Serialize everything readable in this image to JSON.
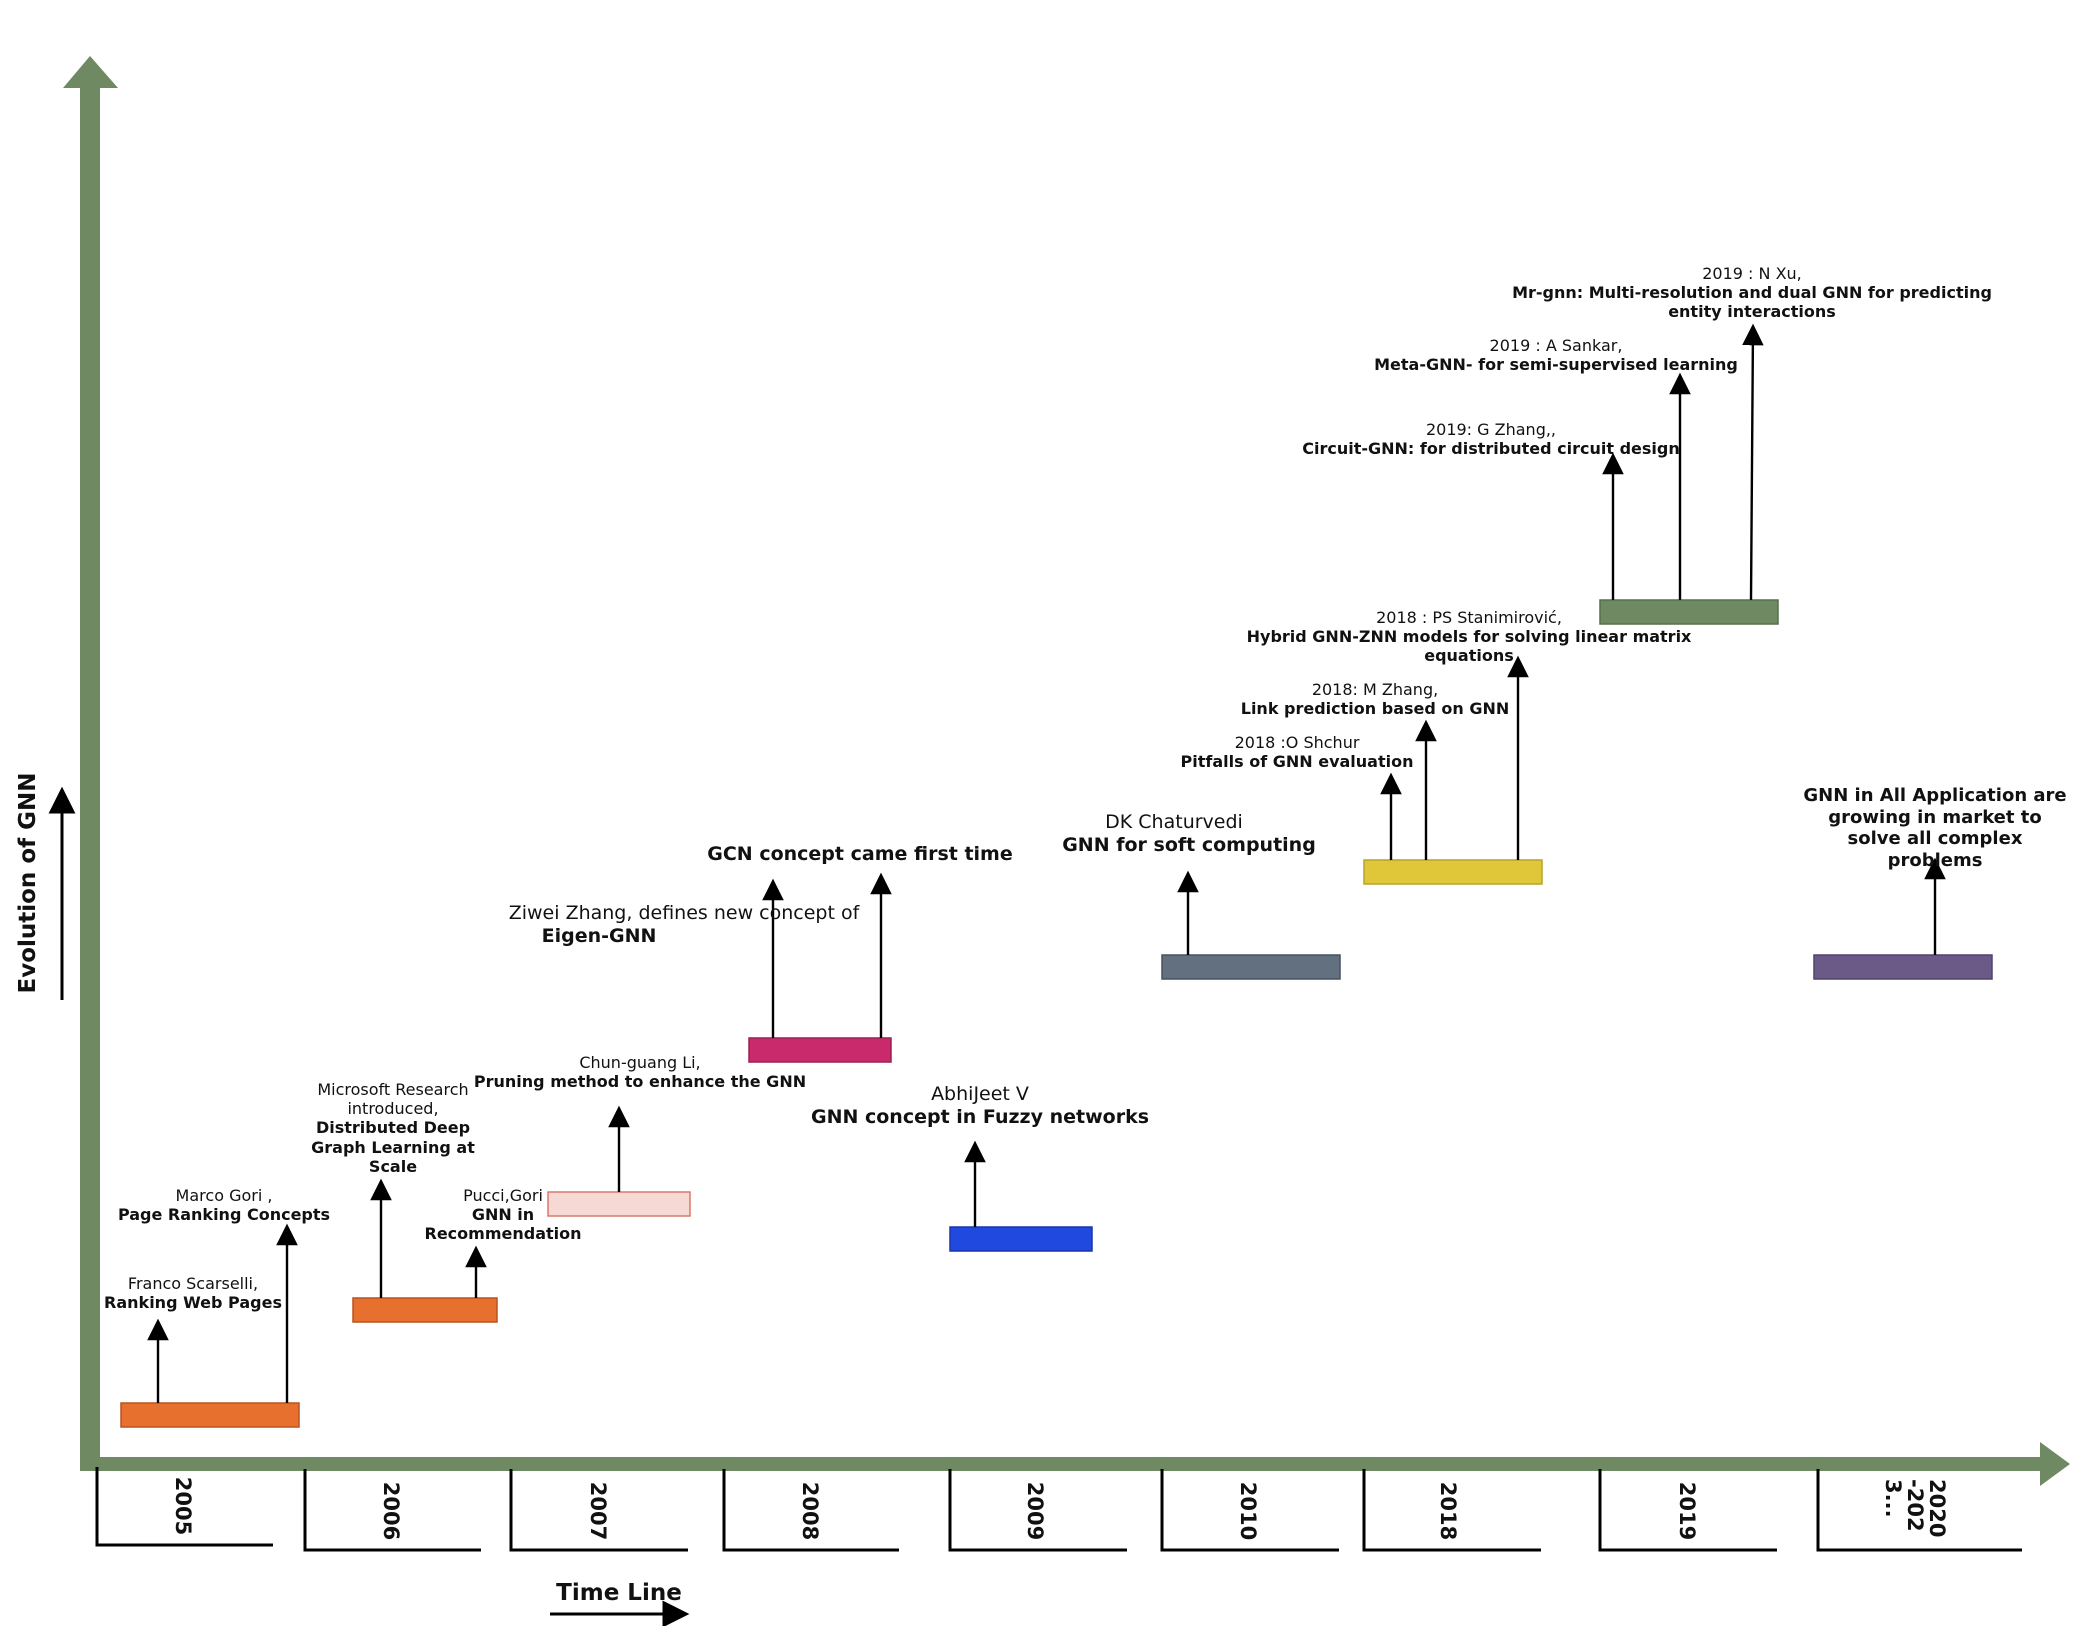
{
  "axes": {
    "y_label": "Evolution of GNN",
    "x_label": "Time Line",
    "axis_color": "#6f8a62"
  },
  "years": [
    "2005",
    "2006",
    "2007",
    "2008",
    "2009",
    "2010",
    "2018",
    "2019",
    "2020-2023..."
  ],
  "bars": [
    {
      "year": "2005",
      "color": "#e8702e"
    },
    {
      "year": "2006",
      "color": "#e8702e"
    },
    {
      "year": "2007",
      "color": "#f6d9d4"
    },
    {
      "year": "2008",
      "color": "#c92a6b"
    },
    {
      "year": "2009",
      "color": "#2049e0"
    },
    {
      "year": "2010",
      "color": "#627080"
    },
    {
      "year": "2018",
      "color": "#e0c73a"
    },
    {
      "year": "2019",
      "color": "#6f8a62"
    },
    {
      "year": "2020-2023...",
      "color": "#6b5a88"
    }
  ],
  "events": [
    {
      "author": "Franco Scarselli,",
      "title": "Ranking Web Pages"
    },
    {
      "author": "Marco Gori ,",
      "title": "Page Ranking Concepts"
    },
    {
      "author": "Microsoft Research introduced,",
      "title": "Distributed Deep Graph Learning at Scale"
    },
    {
      "author": "Pucci,Gori",
      "title": "GNN in Recommendation"
    },
    {
      "author": "Chun-guang Li,",
      "title": "Pruning method to enhance the GNN"
    },
    {
      "author": "Ziwei Zhang, defines new concept of",
      "title": "Eigen-GNN"
    },
    {
      "author": "",
      "title": "GCN concept came first time"
    },
    {
      "author": "AbhiJeet V",
      "title": "GNN concept in Fuzzy networks"
    },
    {
      "author": "DK Chaturvedi",
      "title": "GNN for soft computing"
    },
    {
      "author": "2018 :O Shchur",
      "title": "Pitfalls of GNN evaluation"
    },
    {
      "author": "2018: M Zhang,",
      "title": "Link prediction based on GNN"
    },
    {
      "author": "2018 : PS Stanimirović,",
      "title": "Hybrid GNN-ZNN models for solving linear matrix equations"
    },
    {
      "author": "2019: G Zhang,,",
      "title": "Circuit-GNN: for distributed circuit design"
    },
    {
      "author": "2019 : A Sankar,",
      "title": "Meta-GNN- for semi-supervised learning"
    },
    {
      "author": "2019 : N Xu,",
      "title": "Mr-gnn: Multi-resolution and dual GNN for predicting entity interactions"
    },
    {
      "author": "",
      "title": "GNN in All Application are growing in market to solve all complex problems"
    }
  ]
}
